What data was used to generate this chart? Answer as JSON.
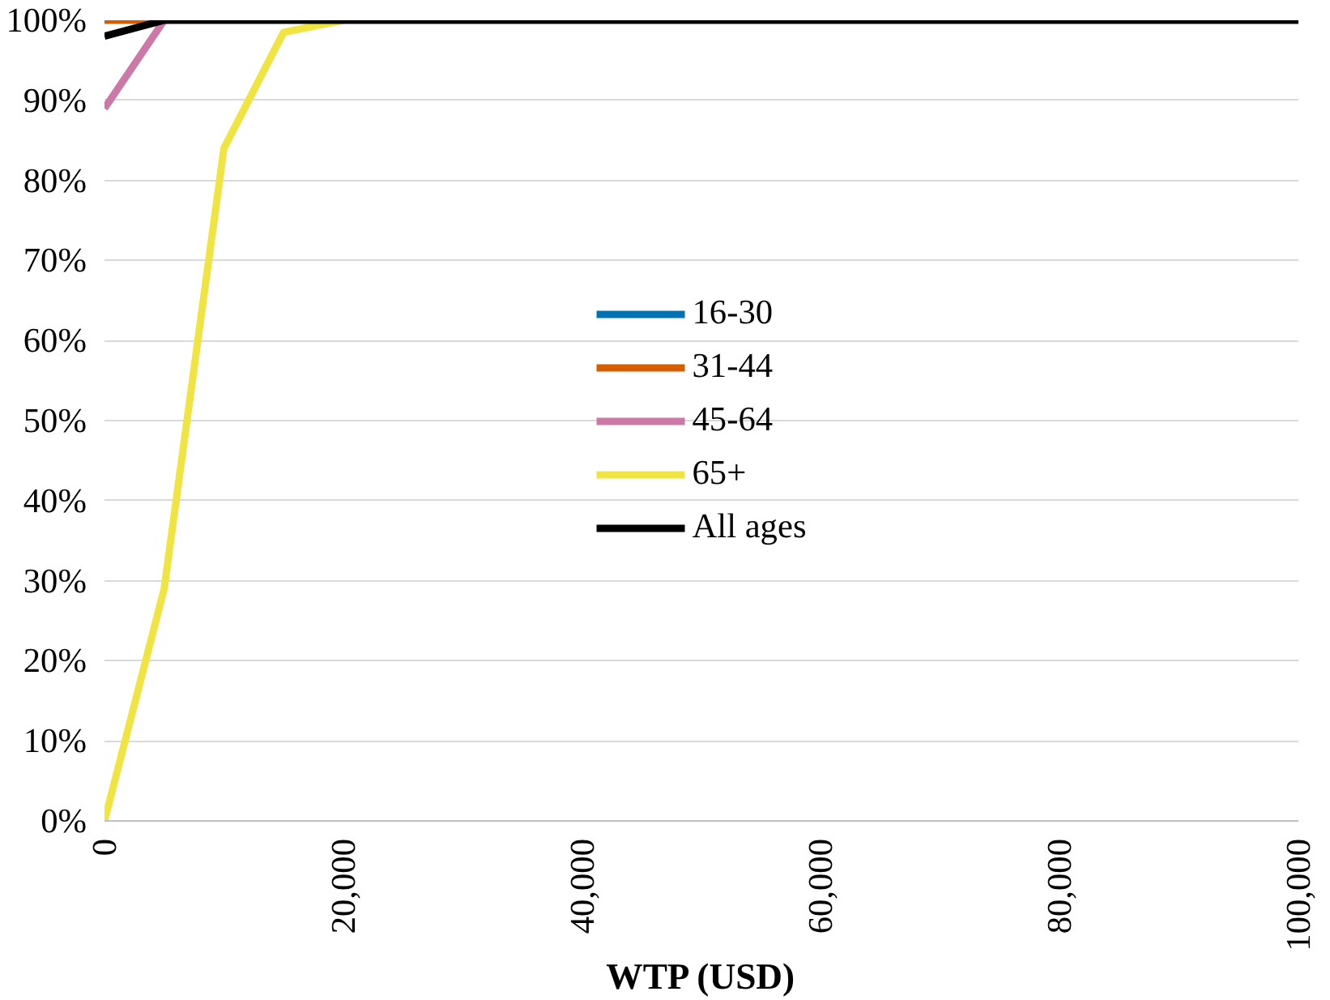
{
  "chart_data": {
    "type": "line",
    "xlabel": "WTP (USD)",
    "x": [
      0,
      5000,
      10000,
      15000,
      20000,
      25000,
      30000,
      35000,
      40000,
      45000,
      50000,
      55000,
      60000,
      65000,
      70000,
      75000,
      80000,
      85000,
      90000,
      95000,
      100000
    ],
    "series": [
      {
        "name": "16-30",
        "color": "#0072b2",
        "values": [
          null,
          null,
          null,
          null,
          null,
          null,
          null,
          null,
          null,
          null,
          null,
          null,
          null,
          null,
          null,
          null,
          null,
          null,
          null,
          null,
          null
        ]
      },
      {
        "name": "31-44",
        "color": "#d55e00",
        "values": [
          100,
          100,
          null,
          null,
          null,
          null,
          null,
          null,
          null,
          null,
          null,
          null,
          null,
          null,
          null,
          null,
          null,
          null,
          null,
          null,
          null
        ]
      },
      {
        "name": "45-64",
        "color": "#cc79a7",
        "values": [
          89,
          100,
          null,
          null,
          null,
          null,
          null,
          null,
          null,
          null,
          null,
          null,
          null,
          null,
          null,
          null,
          null,
          null,
          null,
          null,
          null
        ]
      },
      {
        "name": "65+",
        "color": "#f0e442",
        "values": [
          0,
          29,
          84,
          98.5,
          100,
          null,
          null,
          null,
          null,
          null,
          null,
          null,
          null,
          null,
          null,
          null,
          null,
          null,
          null,
          null,
          null
        ]
      },
      {
        "name": "All ages",
        "color": "#000000",
        "values": [
          98,
          100,
          100,
          100,
          100,
          100,
          100,
          100,
          100,
          100,
          100,
          100,
          100,
          100,
          100,
          100,
          100,
          100,
          100,
          100,
          100
        ]
      }
    ],
    "xlim": [
      0,
      100000
    ],
    "xticks": [
      {
        "value": 0,
        "label": "0"
      },
      {
        "value": 20000,
        "label": "20,000"
      },
      {
        "value": 40000,
        "label": "40,000"
      },
      {
        "value": 60000,
        "label": "60,000"
      },
      {
        "value": 80000,
        "label": "80,000"
      },
      {
        "value": 100000,
        "label": "100,000"
      }
    ],
    "ylim": [
      0,
      100
    ],
    "yticks": [
      {
        "value": 0,
        "label": "0%"
      },
      {
        "value": 10,
        "label": "10%"
      },
      {
        "value": 20,
        "label": "20%"
      },
      {
        "value": 30,
        "label": "30%"
      },
      {
        "value": 40,
        "label": "40%"
      },
      {
        "value": 50,
        "label": "50%"
      },
      {
        "value": 60,
        "label": "60%"
      },
      {
        "value": 70,
        "label": "70%"
      },
      {
        "value": 80,
        "label": "80%"
      },
      {
        "value": 90,
        "label": "90%"
      },
      {
        "value": 100,
        "label": "100%"
      }
    ],
    "grid": "y",
    "legend": "center",
    "marker": "none",
    "line_style": "solid"
  }
}
